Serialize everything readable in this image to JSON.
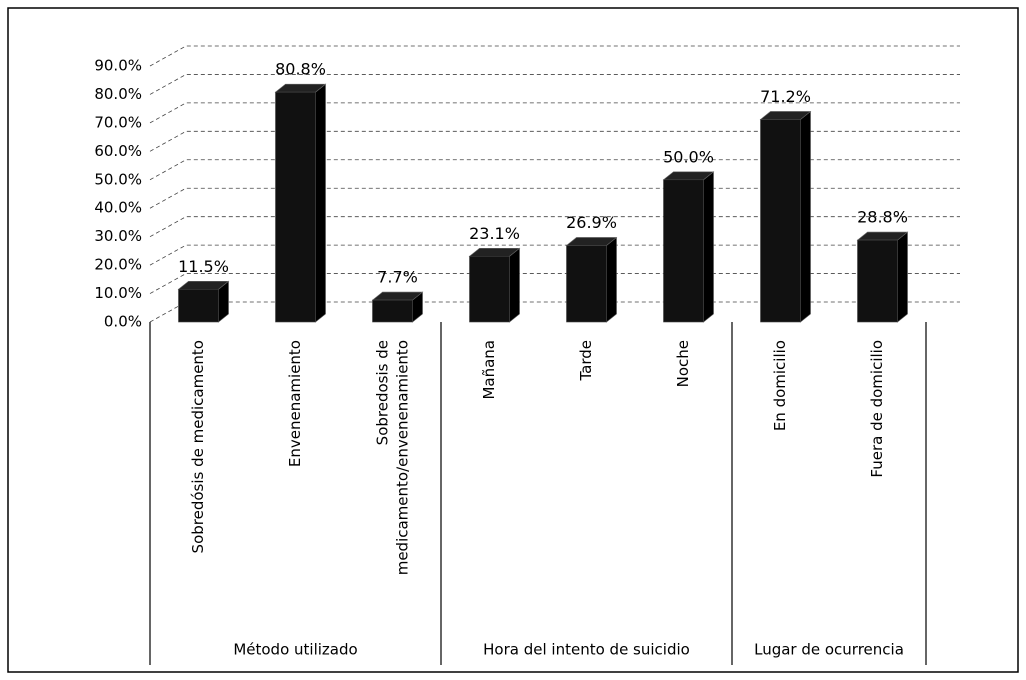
{
  "chart_data": {
    "type": "bar",
    "groups": [
      {
        "name": "Método utilizado",
        "categories": [
          "Sobredósis de medicamento",
          "Envenenamiento",
          "Sobredosis de\nmedicamento/envenenamiento"
        ],
        "values": [
          11.5,
          80.8,
          7.7
        ],
        "value_labels": [
          "11.5%",
          "80.8%",
          "7.7%"
        ]
      },
      {
        "name": "Hora del intento de suicidio",
        "categories": [
          "Mañana",
          "Tarde",
          "Noche"
        ],
        "values": [
          23.1,
          26.9,
          50.0
        ],
        "value_labels": [
          "23.1%",
          "26.9%",
          "50.0%"
        ]
      },
      {
        "name": "Lugar de ocurrencia",
        "categories": [
          "En domicilio",
          "Fuera de domicilio"
        ],
        "values": [
          71.2,
          28.8
        ],
        "value_labels": [
          "71.2%",
          "28.8%"
        ]
      }
    ],
    "color": "#111111",
    "ylim": [
      0,
      90
    ],
    "yticks": [
      {
        "value": 0,
        "label": "0.0%"
      },
      {
        "value": 10,
        "label": "10.0%"
      },
      {
        "value": 20,
        "label": "20.0%"
      },
      {
        "value": 30,
        "label": "30.0%"
      },
      {
        "value": 40,
        "label": "40.0%"
      },
      {
        "value": 50,
        "label": "50.0%"
      },
      {
        "value": 60,
        "label": "60.0%"
      },
      {
        "value": 70,
        "label": "70.0%"
      },
      {
        "value": 80,
        "label": "80.0%"
      },
      {
        "value": 90,
        "label": "90.0%"
      }
    ],
    "grid": true
  }
}
